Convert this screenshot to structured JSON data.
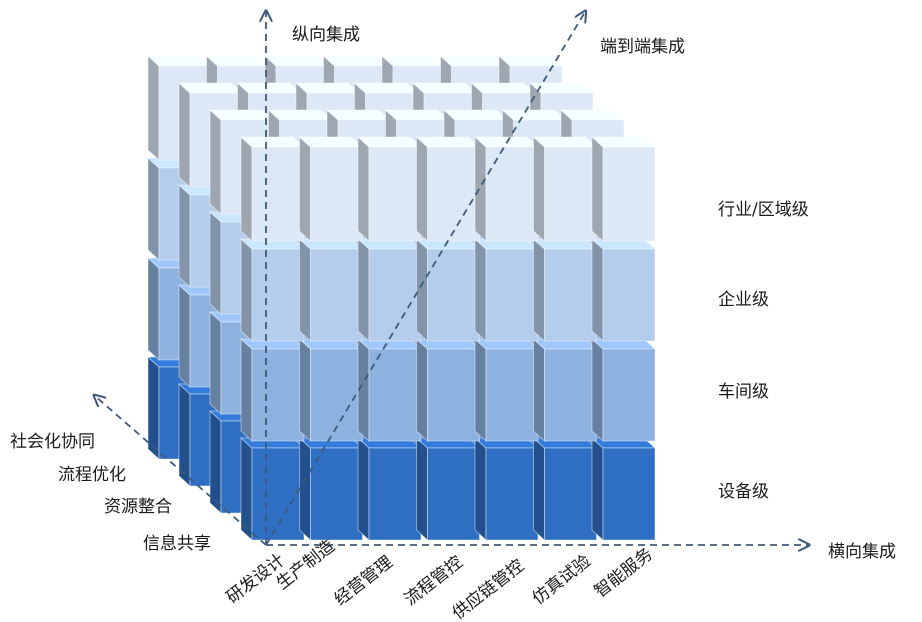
{
  "axes": {
    "vertical": "纵向集成",
    "diagonal": "端到端集成",
    "horizontal": "横向集成"
  },
  "levels": [
    "设备级",
    "车间级",
    "企业级",
    "行业/区域级"
  ],
  "functions": [
    "研发设计",
    "生产制造",
    "经营管理",
    "流程管控",
    "供应链管控",
    "仿真试验",
    "智能服务"
  ],
  "depth": [
    "信息共享",
    "资源整合",
    "流程优化",
    "社会化协同"
  ],
  "colors": {
    "levels": [
      "#2e6fc4",
      "#8eb2e0",
      "#b5cdec",
      "#dce8f6"
    ],
    "axis": "#3f5a78"
  }
}
